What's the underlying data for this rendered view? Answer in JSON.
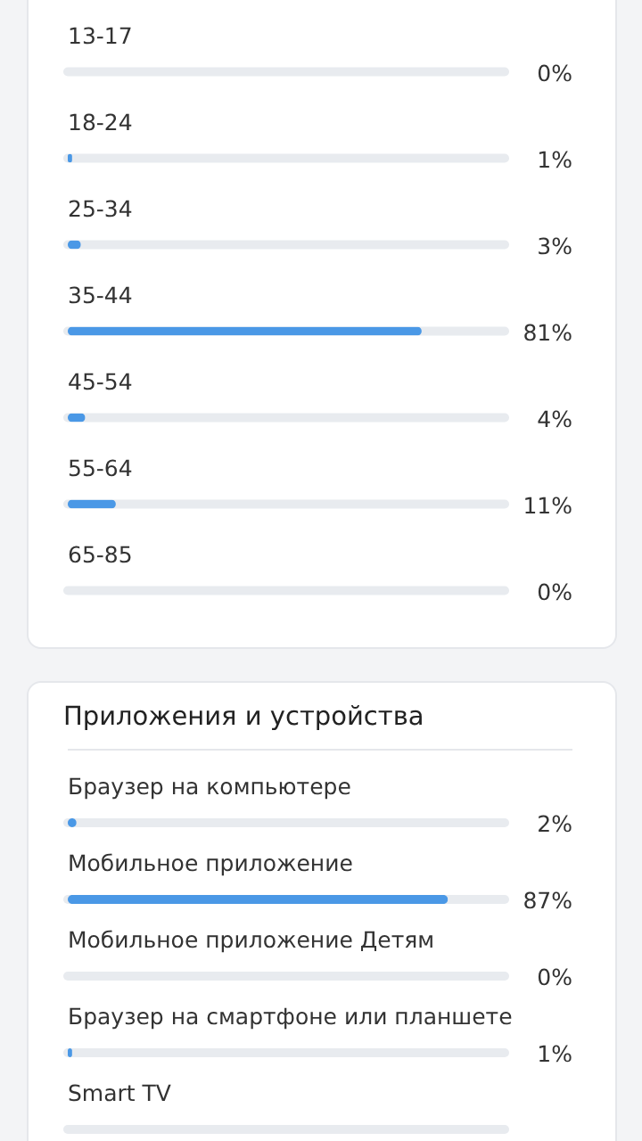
{
  "chart_data": [
    {
      "type": "bar",
      "orientation": "horizontal",
      "categories": [
        "13-17",
        "18-24",
        "25-34",
        "35-44",
        "45-54",
        "55-64",
        "65-85"
      ],
      "values": [
        0,
        1,
        3,
        81,
        4,
        11,
        0
      ],
      "value_labels": [
        "0%",
        "1%",
        "3%",
        "81%",
        "4%",
        "11%",
        "0%"
      ],
      "color": "#4a98e6",
      "xlim": [
        0,
        100
      ],
      "tick_labels": "y"
    },
    {
      "type": "bar",
      "orientation": "horizontal",
      "title": "Приложения и устройства",
      "categories": [
        "Браузер на компьютере",
        "Мобильное приложение",
        "Мобильное приложение Детям",
        "Браузер на смартфоне или планшете",
        "Smart TV"
      ],
      "values": [
        2,
        87,
        0,
        1,
        null
      ],
      "value_labels": [
        "2%",
        "87%",
        "0%",
        "1%",
        null
      ],
      "color": "#4a98e6",
      "xlim": [
        0,
        100
      ],
      "tick_labels": "y"
    }
  ]
}
